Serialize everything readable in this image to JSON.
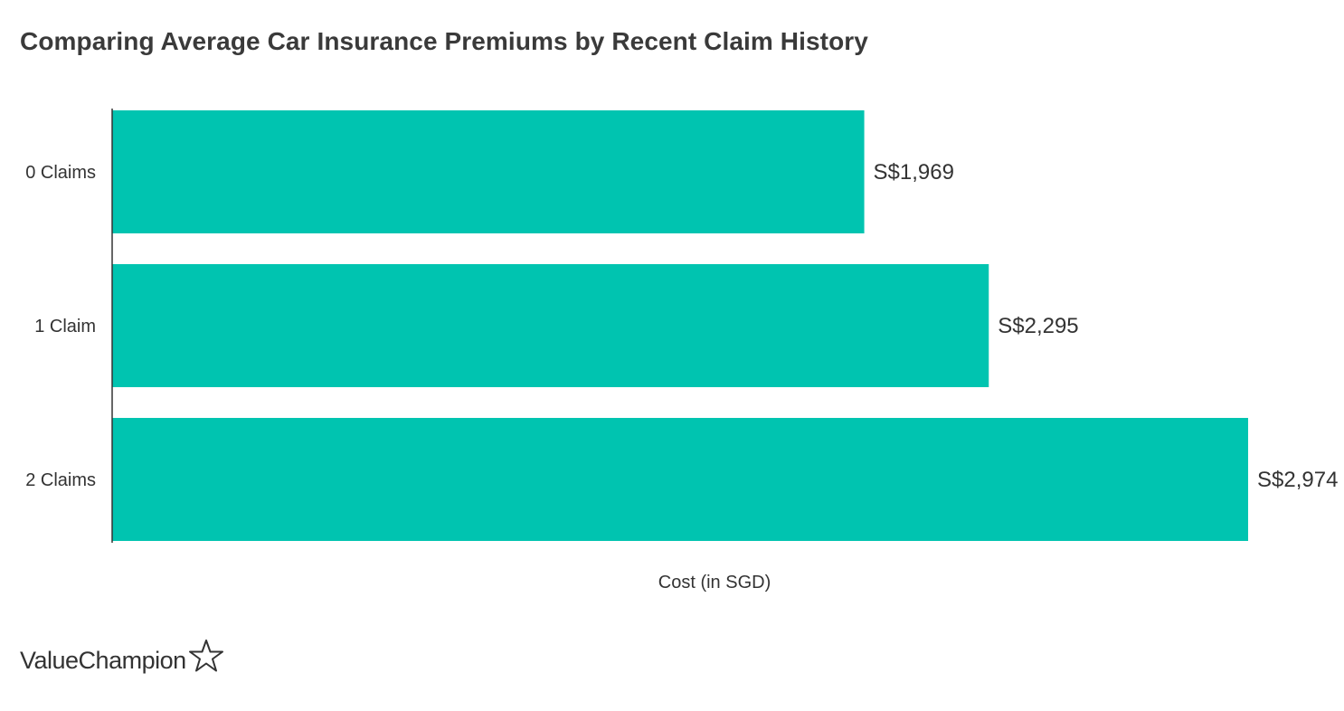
{
  "chart_data": {
    "type": "bar",
    "orientation": "horizontal",
    "title": "Comparing Average Car Insurance Premiums by Recent Claim History",
    "categories": [
      "0 Claims",
      "1 Claim",
      "2 Claims"
    ],
    "values": [
      1969,
      2295,
      2974
    ],
    "value_labels": [
      "S$1,969",
      "S$2,295",
      "S$2,974"
    ],
    "xlabel": "Cost (in SGD)",
    "ylabel": "",
    "xlim": [
      0,
      2974
    ],
    "grid": false,
    "legend": "none",
    "bar_color": "#00c4b0"
  },
  "brand": {
    "name": "ValueChampion",
    "icon": "star-outline-icon"
  }
}
